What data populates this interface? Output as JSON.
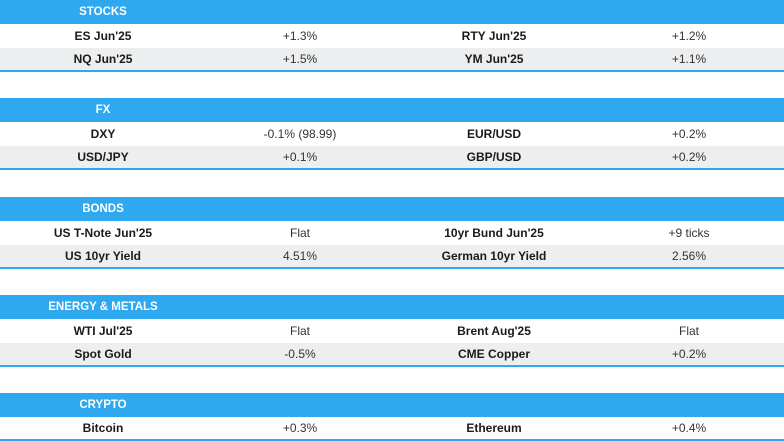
{
  "colors": {
    "header": "#2ea8ef",
    "row_alt": "#eceeef"
  },
  "sections": [
    {
      "title": "STOCKS",
      "rows": [
        {
          "name1": "ES Jun'25",
          "val1": "+1.3%",
          "name2": "RTY Jun'25",
          "val2": "+1.2%"
        },
        {
          "name1": "NQ Jun'25",
          "val1": "+1.5%",
          "name2": "YM Jun'25",
          "val2": "+1.1%"
        }
      ]
    },
    {
      "title": "FX",
      "rows": [
        {
          "name1": "DXY",
          "val1": "-0.1% (98.99)",
          "name2": "EUR/USD",
          "val2": "+0.2%"
        },
        {
          "name1": "USD/JPY",
          "val1": "+0.1%",
          "name2": "GBP/USD",
          "val2": "+0.2%"
        }
      ]
    },
    {
      "title": "BONDS",
      "rows": [
        {
          "name1": "US T-Note Jun'25",
          "val1": "Flat",
          "name2": "10yr Bund Jun'25",
          "val2": "+9 ticks"
        },
        {
          "name1": "US 10yr Yield",
          "val1": "4.51%",
          "name2": "German 10yr Yield",
          "val2": "2.56%"
        }
      ]
    },
    {
      "title": "ENERGY & METALS",
      "rows": [
        {
          "name1": "WTI Jul'25",
          "val1": "Flat",
          "name2": "Brent Aug'25",
          "val2": "Flat"
        },
        {
          "name1": "Spot Gold",
          "val1": "-0.5%",
          "name2": "CME Copper",
          "val2": "+0.2%"
        }
      ]
    },
    {
      "title": "CRYPTO",
      "rows": [
        {
          "name1": "Bitcoin",
          "val1": "+0.3%",
          "name2": "Ethereum",
          "val2": "+0.4%"
        }
      ]
    }
  ]
}
